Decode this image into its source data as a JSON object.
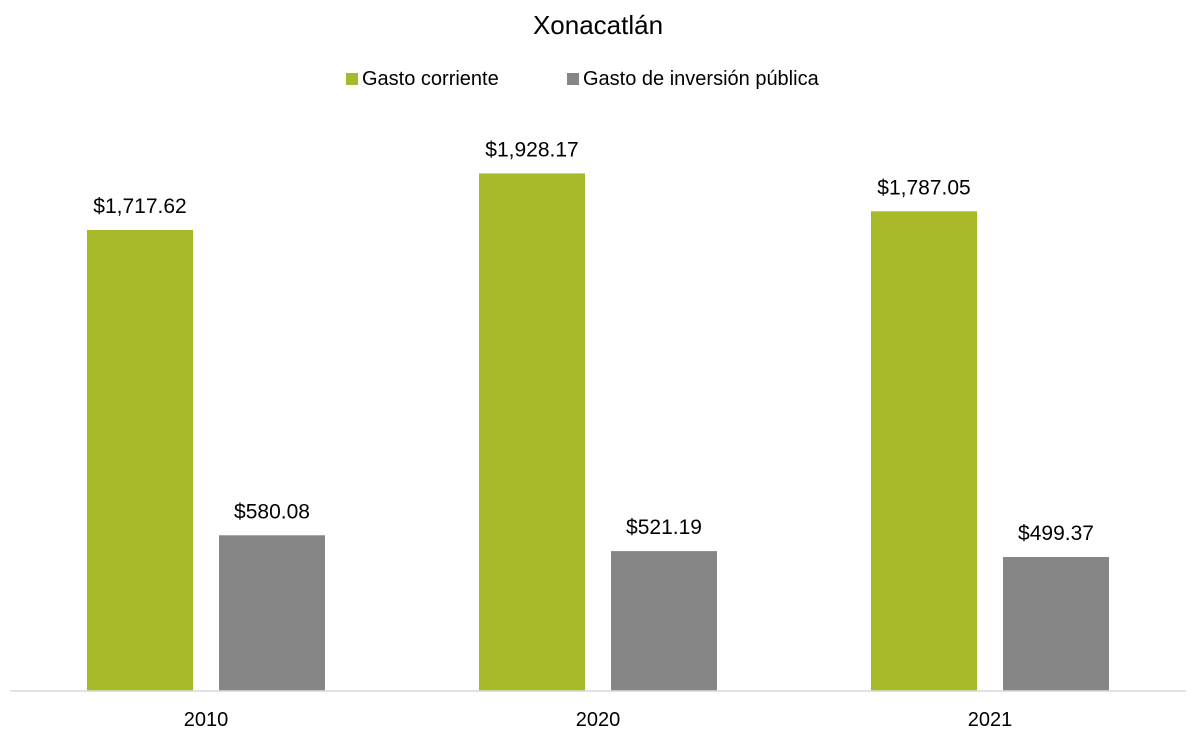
{
  "chart_data": {
    "type": "bar",
    "title": "Xonacatlán",
    "xlabel": "",
    "ylabel": "",
    "categories": [
      "2010",
      "2020",
      "2021"
    ],
    "series": [
      {
        "name": "Gasto corriente",
        "color": "#A8BA2A",
        "values": [
          1717.62,
          1928.17,
          1787.05
        ],
        "labels": [
          "$1,717.62",
          "$1,928.17",
          "$1,787.05"
        ]
      },
      {
        "name": "Gasto de inversión pública",
        "color": "#868686",
        "values": [
          580.08,
          521.19,
          499.37
        ],
        "labels": [
          "$580.08",
          "$521.19",
          "$499.37"
        ]
      }
    ],
    "ylim": [
      0,
      2280
    ],
    "grid": false,
    "legend": "top-center",
    "axis_color": "#D9D9D9"
  }
}
